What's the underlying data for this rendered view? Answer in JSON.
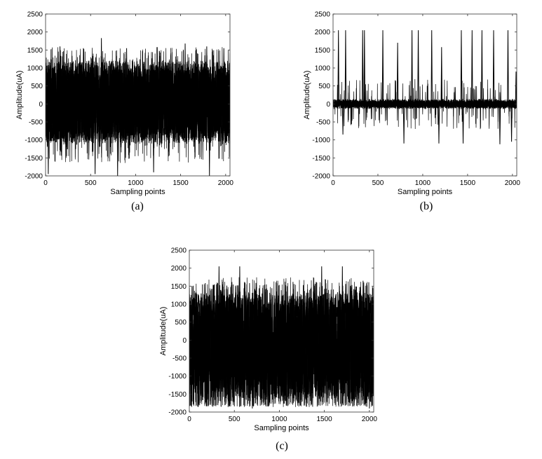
{
  "chart_data": [
    {
      "id": "a",
      "type": "line",
      "panel_label": "(a)",
      "title": "",
      "xlabel": "Sampling points",
      "ylabel": "Amplitude(uA)",
      "xlim": [
        0,
        2048
      ],
      "ylim": [
        -2000,
        2500
      ],
      "x_ticks": [
        0,
        500,
        1000,
        1500,
        2000
      ],
      "y_ticks": [
        -2000,
        -1500,
        -1000,
        -500,
        0,
        500,
        1000,
        1500,
        2000,
        2500
      ],
      "grid": false,
      "legend": "none",
      "series_style": "dense overlapping waveforms",
      "envelope": {
        "upper_typical": 1200,
        "lower_typical": -1100,
        "max": 1830,
        "min": -2000
      },
      "spikes": [
        {
          "x": 160,
          "y": 1600
        },
        {
          "x": 420,
          "y": 1550
        },
        {
          "x": 620,
          "y": 1830
        },
        {
          "x": 900,
          "y": 1550
        },
        {
          "x": 1240,
          "y": 1580
        },
        {
          "x": 1550,
          "y": 1680
        },
        {
          "x": 1790,
          "y": 1600
        },
        {
          "x": 1980,
          "y": 1550
        },
        {
          "x": 30,
          "y": -1950
        },
        {
          "x": 550,
          "y": -1950
        },
        {
          "x": 800,
          "y": -2000
        },
        {
          "x": 1200,
          "y": -1900
        },
        {
          "x": 1820,
          "y": -2000
        }
      ],
      "color": "#000000"
    },
    {
      "id": "b",
      "type": "line",
      "panel_label": "(b)",
      "title": "",
      "xlabel": "Sampling points",
      "ylabel": "Amplitude(uA)",
      "xlim": [
        0,
        2048
      ],
      "ylim": [
        -2000,
        2500
      ],
      "x_ticks": [
        0,
        500,
        1000,
        1500,
        2000
      ],
      "y_ticks": [
        -2000,
        -1500,
        -1000,
        -500,
        0,
        500,
        1000,
        1500,
        2000,
        2500
      ],
      "grid": false,
      "legend": "none",
      "series_style": "dense overlapping waveforms",
      "envelope": {
        "upper_typical": 150,
        "lower_typical": -150,
        "max": 2050,
        "min": -1150
      },
      "spikes": [
        {
          "x": 60,
          "y": 2050
        },
        {
          "x": 140,
          "y": 2050
        },
        {
          "x": 330,
          "y": 2050
        },
        {
          "x": 350,
          "y": 2050
        },
        {
          "x": 555,
          "y": 2050
        },
        {
          "x": 720,
          "y": 1700
        },
        {
          "x": 880,
          "y": 2050
        },
        {
          "x": 950,
          "y": 2050
        },
        {
          "x": 1100,
          "y": 2050
        },
        {
          "x": 1210,
          "y": 1580
        },
        {
          "x": 1430,
          "y": 2050
        },
        {
          "x": 1550,
          "y": 2050
        },
        {
          "x": 1660,
          "y": 2050
        },
        {
          "x": 1790,
          "y": 2050
        },
        {
          "x": 1950,
          "y": 2050
        },
        {
          "x": 2040,
          "y": 900
        },
        {
          "x": 110,
          "y": -850
        },
        {
          "x": 790,
          "y": -1100
        },
        {
          "x": 1180,
          "y": -1100
        },
        {
          "x": 1450,
          "y": -1100
        },
        {
          "x": 1860,
          "y": -1120
        },
        {
          "x": 1990,
          "y": -1050
        }
      ],
      "color": "#000000"
    },
    {
      "id": "c",
      "type": "line",
      "panel_label": "(c)",
      "title": "",
      "xlabel": "Sampling points",
      "ylabel": "Amplitude(uA)",
      "xlim": [
        0,
        2048
      ],
      "ylim": [
        -2000,
        2500
      ],
      "x_ticks": [
        0,
        500,
        1000,
        1500,
        2000
      ],
      "y_ticks": [
        -2000,
        -1500,
        -1000,
        -500,
        0,
        500,
        1000,
        1500,
        2000,
        2500
      ],
      "grid": false,
      "legend": "none",
      "series_style": "dense overlapping waveforms",
      "envelope": {
        "upper_typical": 1300,
        "lower_typical": -1800,
        "max": 2050,
        "min": -1900
      },
      "spikes": [
        {
          "x": 330,
          "y": 2050
        },
        {
          "x": 560,
          "y": 2050
        },
        {
          "x": 1470,
          "y": 2050
        },
        {
          "x": 1700,
          "y": 2050
        },
        {
          "x": 1930,
          "y": 1650
        },
        {
          "x": 30,
          "y": 1500
        },
        {
          "x": 100,
          "y": -1850
        },
        {
          "x": 700,
          "y": -1900
        },
        {
          "x": 1300,
          "y": -1850
        },
        {
          "x": 2000,
          "y": -1900
        }
      ],
      "color": "#000000"
    }
  ]
}
